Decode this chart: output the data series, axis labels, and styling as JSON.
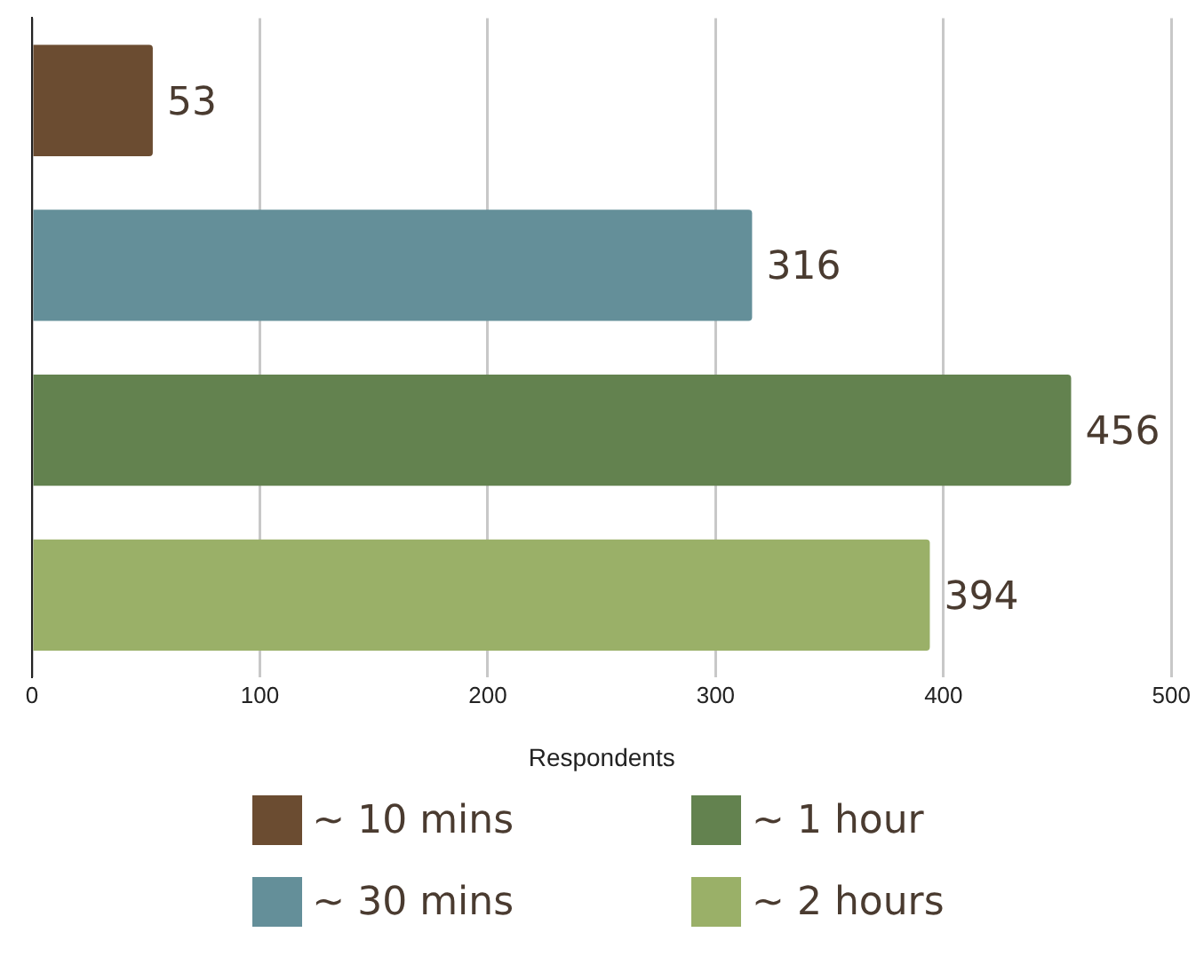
{
  "chart_data": {
    "type": "bar",
    "orientation": "horizontal",
    "xlabel": "Respondents",
    "categories": [
      null,
      null,
      null,
      null
    ],
    "series": [
      {
        "name": "~ 10 mins",
        "color": "#6b4c31",
        "values": [
          53,
          null,
          null,
          null
        ]
      },
      {
        "name": "~ 30 mins",
        "color": "#648f99",
        "values": [
          null,
          316,
          null,
          null
        ]
      },
      {
        "name": "~ 1 hour",
        "color": "#63824f",
        "values": [
          null,
          null,
          456,
          null
        ]
      },
      {
        "name": "~ 2 hours",
        "color": "#9ab068",
        "values": [
          null,
          null,
          null,
          394
        ]
      }
    ],
    "xlim": [
      0,
      500
    ],
    "xticks": [
      0,
      100,
      200,
      300,
      400,
      500
    ],
    "grid": "x",
    "data_labels": true,
    "legend": "bottom"
  }
}
